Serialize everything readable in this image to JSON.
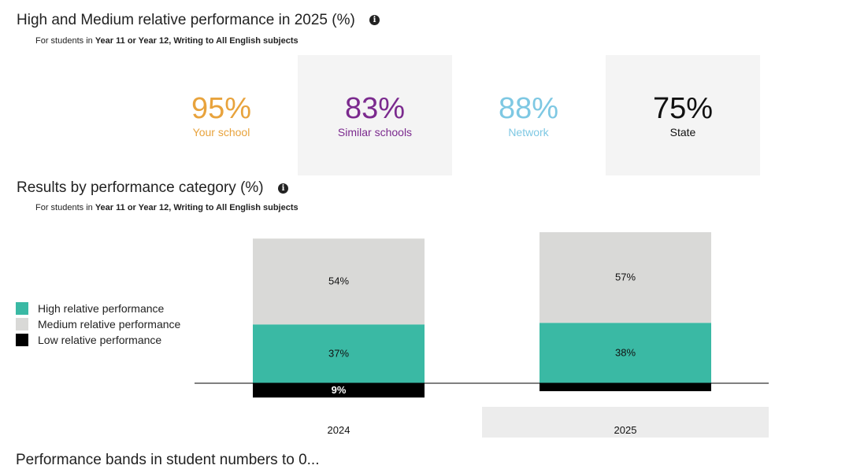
{
  "summary": {
    "title": "High and Medium relative performance in 2025 (%)",
    "subtitle_prefix": "For students in",
    "subtitle_bold": "Year 11 or Year 12, Writing to All English subjects",
    "stats": [
      {
        "value": "95%",
        "label": "Your school",
        "color": "#e8a33d"
      },
      {
        "value": "83%",
        "label": "Similar schools",
        "color": "#7b2a8e"
      },
      {
        "value": "88%",
        "label": "Network",
        "color": "#7ec8e3"
      },
      {
        "value": "75%",
        "label": "State",
        "color": "#111111"
      }
    ]
  },
  "results": {
    "title": "Results by performance category (%)",
    "subtitle_prefix": "For students in",
    "subtitle_bold": "Year 11 or Year 12, Writing to All English subjects"
  },
  "legend": [
    {
      "label": "High relative performance",
      "color": "#3ab9a4"
    },
    {
      "label": "Medium relative performance",
      "color": "#d9d9d7"
    },
    {
      "label": "Low relative performance",
      "color": "#000000"
    }
  ],
  "chart_data": {
    "type": "bar",
    "stacked": true,
    "categories": [
      "2024",
      "2025"
    ],
    "highlighted_category": "2025",
    "series": [
      {
        "name": "High relative performance",
        "values": [
          37,
          38
        ],
        "labels": [
          "37%",
          "38%"
        ],
        "color": "#3ab9a4",
        "direction": "up"
      },
      {
        "name": "Medium relative performance",
        "values": [
          54,
          57
        ],
        "labels": [
          "54%",
          "57%"
        ],
        "color": "#d9d9d7",
        "direction": "up"
      },
      {
        "name": "Low relative performance",
        "values": [
          9,
          5
        ],
        "labels": [
          "9%",
          ""
        ],
        "color": "#000000",
        "direction": "down"
      }
    ]
  },
  "next_section_title": "Performance bands in student numbers to 0..."
}
